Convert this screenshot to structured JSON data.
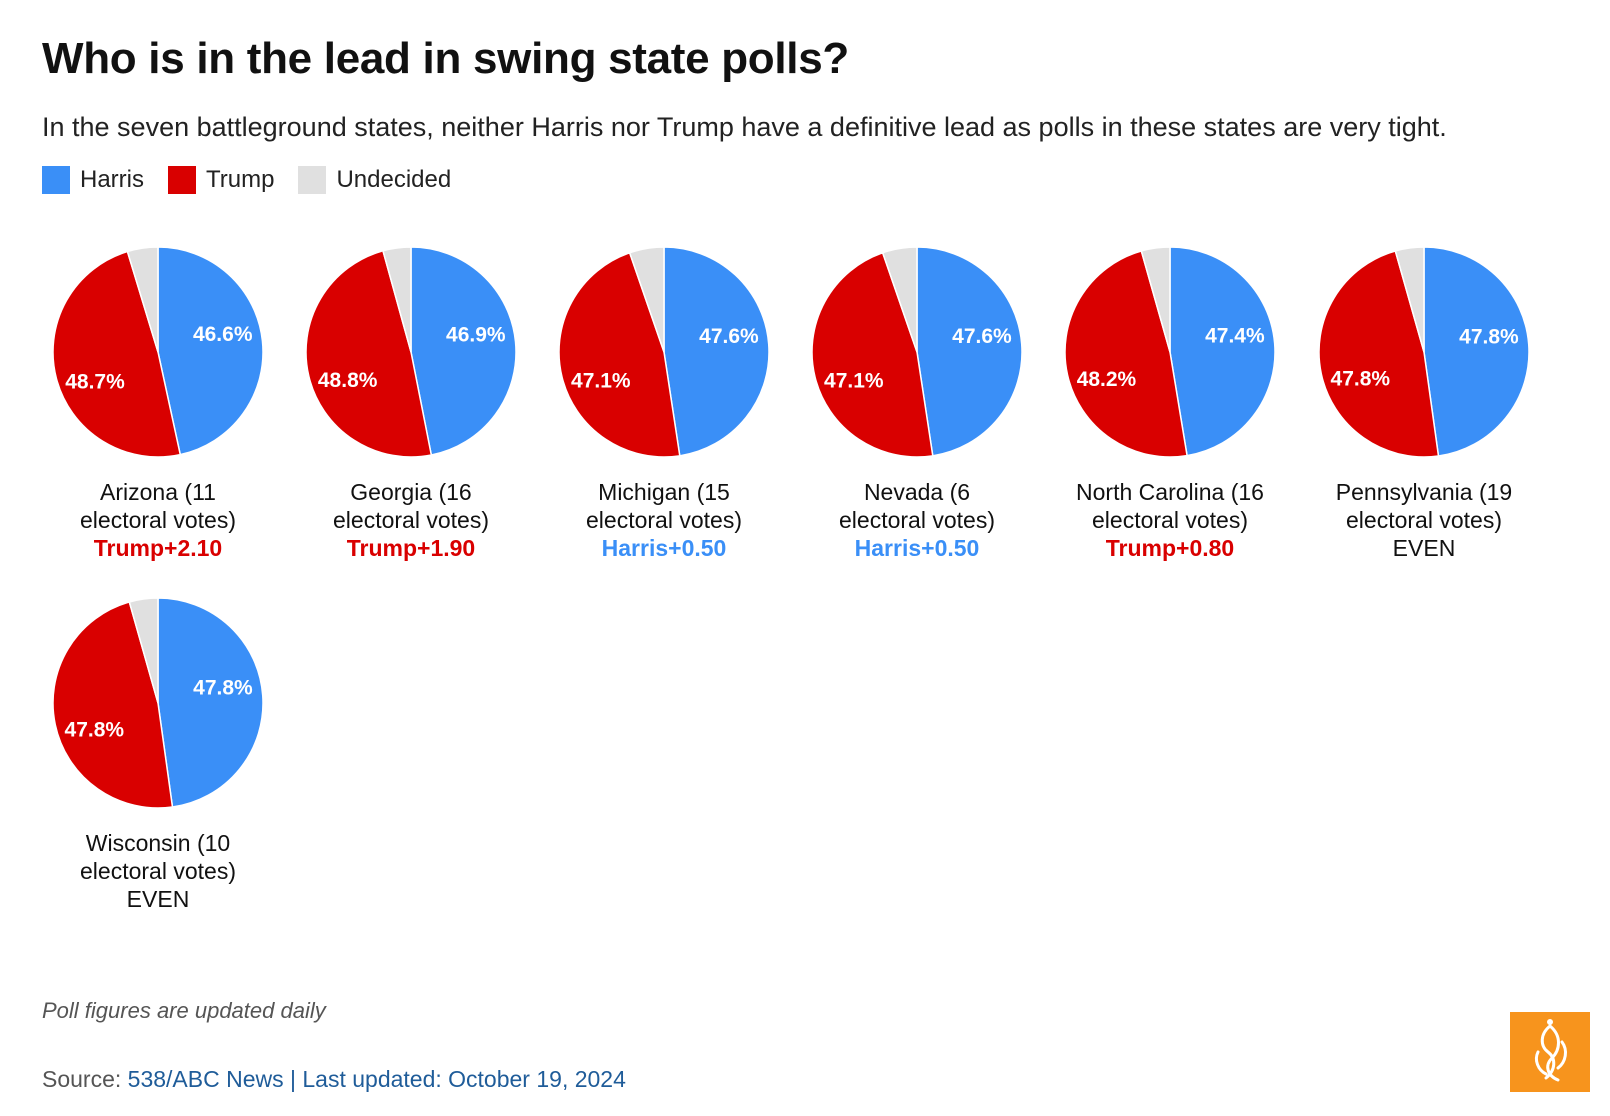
{
  "title": "Who is in the lead in swing state polls?",
  "subtitle": "In the seven battleground states, neither Harris nor Trump have a definitive lead as polls in these states are very tight.",
  "legend": [
    {
      "name": "Harris",
      "color": "#3a8ff7"
    },
    {
      "name": "Trump",
      "color": "#d90000"
    },
    {
      "name": "Undecided",
      "color": "#e0e0e0"
    }
  ],
  "chart_data": {
    "type": "pie",
    "series_names": [
      "Harris",
      "Trump",
      "Undecided"
    ],
    "colors": {
      "Harris": "#3a8ff7",
      "Trump": "#d90000",
      "Undecided": "#e0e0e0",
      "even": "#111111"
    },
    "states": [
      {
        "label_line1": "Arizona (11",
        "label_line2": "electoral votes)",
        "lead": "Trump+2.10",
        "lead_party": "Trump",
        "harris": 46.6,
        "trump": 48.7,
        "harris_label": "46.6%",
        "trump_label": "48.7%"
      },
      {
        "label_line1": "Georgia (16",
        "label_line2": "electoral votes)",
        "lead": "Trump+1.90",
        "lead_party": "Trump",
        "harris": 46.9,
        "trump": 48.8,
        "harris_label": "46.9%",
        "trump_label": "48.8%"
      },
      {
        "label_line1": "Michigan (15",
        "label_line2": "electoral votes)",
        "lead": "Harris+0.50",
        "lead_party": "Harris",
        "harris": 47.6,
        "trump": 47.1,
        "harris_label": "47.6%",
        "trump_label": "47.1%"
      },
      {
        "label_line1": "Nevada (6",
        "label_line2": "electoral votes)",
        "lead": "Harris+0.50",
        "lead_party": "Harris",
        "harris": 47.6,
        "trump": 47.1,
        "harris_label": "47.6%",
        "trump_label": "47.1%"
      },
      {
        "label_line1": "North Carolina (16",
        "label_line2": "electoral votes)",
        "lead": "Trump+0.80",
        "lead_party": "Trump",
        "harris": 47.4,
        "trump": 48.2,
        "harris_label": "47.4%",
        "trump_label": "48.2%"
      },
      {
        "label_line1": "Pennsylvania (19",
        "label_line2": "electoral votes)",
        "lead": "EVEN",
        "lead_party": "even",
        "harris": 47.8,
        "trump": 47.8,
        "harris_label": "47.8%",
        "trump_label": "47.8%"
      },
      {
        "label_line1": "Wisconsin (10",
        "label_line2": "electoral votes)",
        "lead": "EVEN",
        "lead_party": "even",
        "harris": 47.8,
        "trump": 47.8,
        "harris_label": "47.8%",
        "trump_label": "47.8%"
      }
    ]
  },
  "footer": {
    "note": "Poll figures are updated daily",
    "source_prefix": "Source: ",
    "source_link": "538/ABC News | Last updated: October 19, 2024"
  },
  "logo": {
    "name": "Al Jazeera",
    "color": "#f7941d"
  }
}
